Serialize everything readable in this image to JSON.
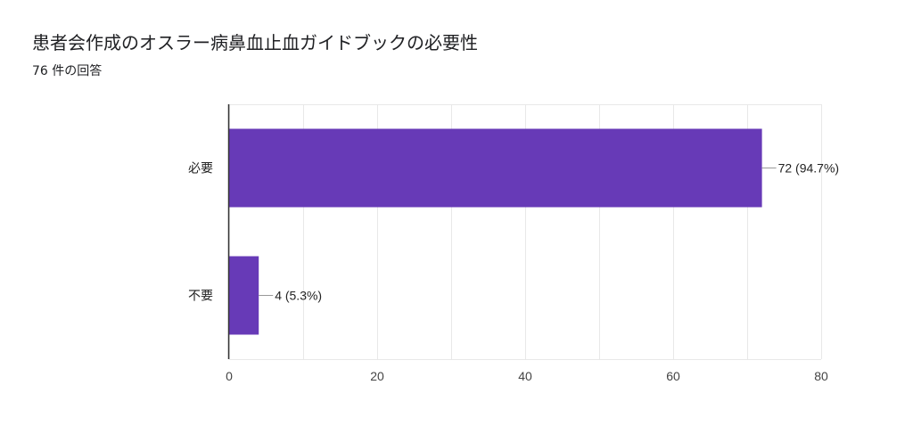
{
  "title": "患者会作成のオスラー病鼻血止血ガイドブックの必要性",
  "subtitle": "76 件の回答",
  "colors": {
    "bar": "#673ab7",
    "grid": "#e8e8e8",
    "axis": "#333333",
    "text": "#222222"
  },
  "chart_data": {
    "type": "bar",
    "orientation": "horizontal",
    "categories": [
      "必要",
      "不要"
    ],
    "values": [
      72,
      4
    ],
    "data_labels": [
      "72 (94.7%)",
      "4 (5.3%)"
    ],
    "xlim": [
      0,
      80
    ],
    "x_ticks": [
      0,
      20,
      40,
      60,
      80
    ],
    "x_tick_labels": [
      "0",
      "20",
      "40",
      "60",
      "80"
    ],
    "grid": true,
    "legend": "none"
  }
}
